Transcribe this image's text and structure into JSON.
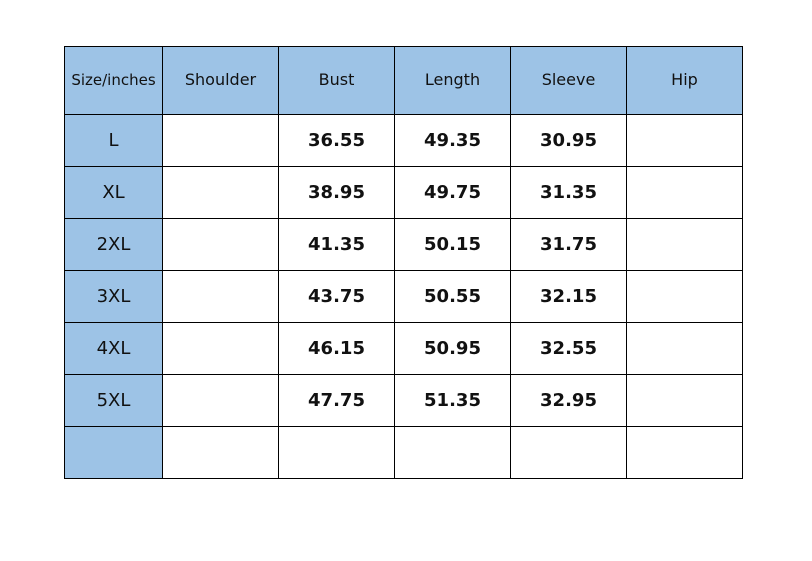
{
  "table": {
    "headers": [
      "Size/inches",
      "Shoulder",
      "Bust",
      "Length",
      "Sleeve",
      "Hip"
    ],
    "rows": [
      [
        "L",
        "",
        "36.55",
        "49.35",
        "30.95",
        ""
      ],
      [
        "XL",
        "",
        "38.95",
        "49.75",
        "31.35",
        ""
      ],
      [
        "2XL",
        "",
        "41.35",
        "50.15",
        "31.75",
        ""
      ],
      [
        "3XL",
        "",
        "43.75",
        "50.55",
        "32.15",
        ""
      ],
      [
        "4XL",
        "",
        "46.15",
        "50.95",
        "32.55",
        ""
      ],
      [
        "5XL",
        "",
        "47.75",
        "51.35",
        "32.95",
        ""
      ],
      [
        "",
        "",
        "",
        "",
        "",
        ""
      ]
    ]
  },
  "colors": {
    "header_fill": "#9dc3e6",
    "border": "#000000",
    "background": "#ffffff"
  }
}
